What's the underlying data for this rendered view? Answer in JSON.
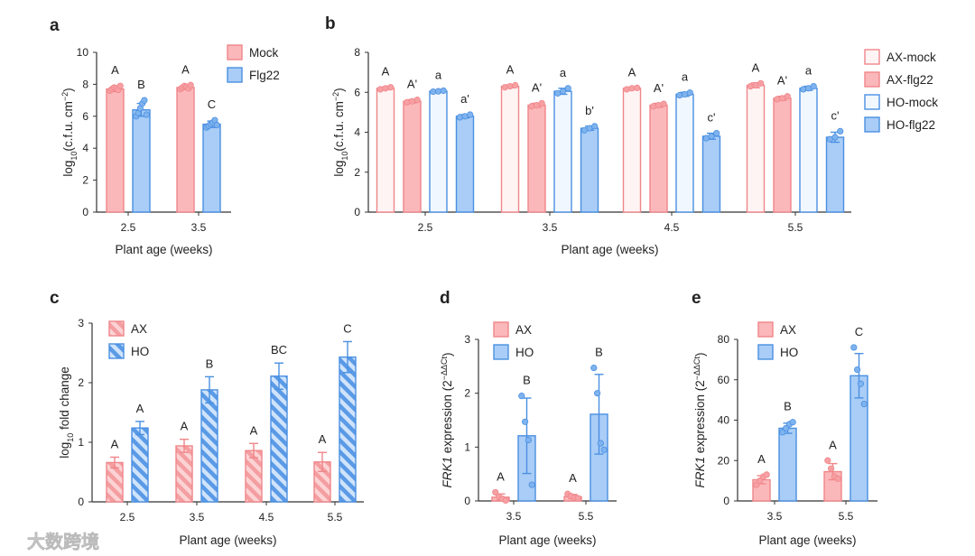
{
  "watermark": "大数跨境",
  "colors": {
    "red_stroke": "#f0868a",
    "red_fill": "#fbb8ba",
    "red_light": "#fff4f4",
    "blue_stroke": "#4a90e2",
    "blue_fill": "#a9cdf6",
    "blue_light": "#f1f7fe",
    "axis": "#333333"
  },
  "chart_data": [
    {
      "panel": "a",
      "type": "bar",
      "categories": [
        "2.5",
        "3.5"
      ],
      "xlabel": "Plant age (weeks)",
      "ylabel_parts": [
        {
          "t": "log"
        },
        {
          "t": "10",
          "sub": true
        },
        {
          "t": "(c.f.u. cm"
        },
        {
          "t": "−2",
          "sup": true
        },
        {
          "t": ")"
        }
      ],
      "ylim": [
        0,
        10
      ],
      "yticks": [
        "0",
        "2",
        "4",
        "6",
        "8",
        "10"
      ],
      "legend_position": "top-right",
      "series": [
        {
          "name": "Mock",
          "style": "red",
          "values": [
            7.7,
            7.8
          ],
          "sd": [
            0.15,
            0.12
          ],
          "letters": [
            "A",
            "A"
          ],
          "points": [
            [
              7.6,
              7.7,
              7.8,
              7.75,
              7.65,
              7.9
            ],
            [
              7.7,
              7.8,
              7.9,
              7.85,
              7.75,
              7.95
            ]
          ]
        },
        {
          "name": "Flg22",
          "style": "blue",
          "values": [
            6.4,
            5.5
          ],
          "sd": [
            0.4,
            0.2
          ],
          "letters": [
            "B",
            "C"
          ],
          "points": [
            [
              6.0,
              6.2,
              6.5,
              6.8,
              7.0,
              6.1
            ],
            [
              5.3,
              5.4,
              5.5,
              5.6,
              5.75,
              5.45
            ]
          ]
        }
      ]
    },
    {
      "panel": "b",
      "type": "bar",
      "categories": [
        "2.5",
        "3.5",
        "4.5",
        "5.5"
      ],
      "xlabel": "Plant age (weeks)",
      "ylabel_parts": [
        {
          "t": "log"
        },
        {
          "t": "10",
          "sub": true
        },
        {
          "t": "(c.f.u. cm"
        },
        {
          "t": "−2",
          "sup": true
        },
        {
          "t": ")"
        }
      ],
      "ylim": [
        0,
        8
      ],
      "yticks": [
        "0",
        "2",
        "4",
        "6",
        "8"
      ],
      "legend_position": "right",
      "series": [
        {
          "name": "AX-mock",
          "style": "red-light",
          "values": [
            6.2,
            6.3,
            6.2,
            6.35
          ],
          "sd": [
            0.06,
            0.07,
            0.05,
            0.12
          ],
          "letters": [
            "A",
            "A",
            "A",
            "A"
          ],
          "points": [
            [
              6.15,
              6.2,
              6.25
            ],
            [
              6.25,
              6.3,
              6.35
            ],
            [
              6.15,
              6.2,
              6.22
            ],
            [
              6.3,
              6.35,
              6.45
            ]
          ]
        },
        {
          "name": "AX-flg22",
          "style": "red",
          "values": [
            5.55,
            5.35,
            5.35,
            5.7
          ],
          "sd": [
            0.08,
            0.1,
            0.1,
            0.1
          ],
          "letters": [
            "A'",
            "A'",
            "A'",
            "A'"
          ],
          "points": [
            [
              5.5,
              5.55,
              5.62
            ],
            [
              5.3,
              5.35,
              5.45
            ],
            [
              5.3,
              5.35,
              5.42
            ],
            [
              5.65,
              5.7,
              5.8
            ]
          ]
        },
        {
          "name": "HO-mock",
          "style": "blue-light",
          "values": [
            6.05,
            6.05,
            5.9,
            6.2
          ],
          "sd": [
            0.05,
            0.15,
            0.1,
            0.1
          ],
          "letters": [
            "a",
            "a",
            "a",
            "a"
          ],
          "points": [
            [
              6.03,
              6.05,
              6.08
            ],
            [
              5.95,
              6.05,
              6.2
            ],
            [
              5.85,
              5.9,
              5.98
            ],
            [
              6.15,
              6.2,
              6.3
            ]
          ]
        },
        {
          "name": "HO-flg22",
          "style": "blue",
          "values": [
            4.8,
            4.2,
            3.8,
            3.75
          ],
          "sd": [
            0.08,
            0.1,
            0.15,
            0.25
          ],
          "letters": [
            "a'",
            "b'",
            "c'",
            "c'"
          ],
          "points": [
            [
              4.75,
              4.8,
              4.88
            ],
            [
              4.1,
              4.2,
              4.3
            ],
            [
              3.7,
              3.8,
              3.95
            ],
            [
              3.65,
              3.75,
              4.05
            ]
          ]
        }
      ]
    },
    {
      "panel": "c",
      "type": "bar",
      "categories": [
        "2.5",
        "3.5",
        "4.5",
        "5.5"
      ],
      "xlabel": "Plant age (weeks)",
      "ylabel_parts": [
        {
          "t": "log"
        },
        {
          "t": "10",
          "sub": true
        },
        {
          "t": " fold change"
        }
      ],
      "ylim": [
        0,
        3
      ],
      "yticks": [
        "0",
        "1",
        "2",
        "3"
      ],
      "legend_position": "top-left",
      "series": [
        {
          "name": "AX",
          "style": "red-hatch",
          "values": [
            0.66,
            0.94,
            0.86,
            0.67
          ],
          "sd": [
            0.09,
            0.11,
            0.12,
            0.16
          ],
          "letters": [
            "A",
            "A",
            "A",
            "A"
          ]
        },
        {
          "name": "HO",
          "style": "blue-hatch",
          "values": [
            1.24,
            1.88,
            2.11,
            2.43
          ],
          "sd": [
            0.11,
            0.22,
            0.22,
            0.26
          ],
          "letters": [
            "A",
            "B",
            "BC",
            "C"
          ]
        }
      ]
    },
    {
      "panel": "d",
      "type": "bar",
      "categories": [
        "3.5",
        "5.5"
      ],
      "xlabel": "Plant age (weeks)",
      "ylabel_parts": [
        {
          "t": "FRK1",
          "italic": true
        },
        {
          "t": " expression (2"
        },
        {
          "t": "−ΔΔCt",
          "sup": true
        },
        {
          "t": ")"
        }
      ],
      "ylim": [
        0,
        3
      ],
      "yticks": [
        "0",
        "1",
        "2",
        "3"
      ],
      "legend_position": "top-left",
      "series": [
        {
          "name": "AX",
          "style": "red",
          "values": [
            0.07,
            0.08
          ],
          "sd": [
            0.06,
            0.04
          ],
          "letters": [
            "A",
            "A"
          ],
          "points": [
            [
              0.16,
              0.08,
              0.04,
              0.01
            ],
            [
              0.13,
              0.09,
              0.06,
              0.05
            ]
          ]
        },
        {
          "name": "HO",
          "style": "blue",
          "values": [
            1.21,
            1.61
          ],
          "sd": [
            0.7,
            0.74
          ],
          "letters": [
            "B",
            "B"
          ],
          "points": [
            [
              1.95,
              1.47,
              1.13,
              0.3
            ],
            [
              2.47,
              2.0,
              1.07,
              0.95
            ]
          ]
        }
      ]
    },
    {
      "panel": "e",
      "type": "bar",
      "categories": [
        "3.5",
        "5.5"
      ],
      "xlabel": "Plant age (weeks)",
      "ylabel_parts": [
        {
          "t": "FRK1",
          "italic": true
        },
        {
          "t": " expression (2"
        },
        {
          "t": "−ΔΔCt",
          "sup": true
        },
        {
          "t": ")"
        }
      ],
      "ylim": [
        0,
        80
      ],
      "yticks": [
        "0",
        "20",
        "40",
        "60",
        "80"
      ],
      "legend_position": "top-left",
      "series": [
        {
          "name": "AX",
          "style": "red",
          "values": [
            10.5,
            14.5
          ],
          "sd": [
            2.0,
            4.0
          ],
          "letters": [
            "A",
            "A"
          ],
          "points": [
            [
              8,
              10,
              12,
              13
            ],
            [
              20,
              16,
              12,
              11
            ]
          ]
        },
        {
          "name": "HO",
          "style": "blue",
          "values": [
            36,
            62
          ],
          "sd": [
            2.5,
            11
          ],
          "letters": [
            "B",
            "C"
          ],
          "points": [
            [
              34,
              36,
              38,
              39
            ],
            [
              76,
              65,
              58,
              48
            ]
          ]
        }
      ]
    }
  ]
}
